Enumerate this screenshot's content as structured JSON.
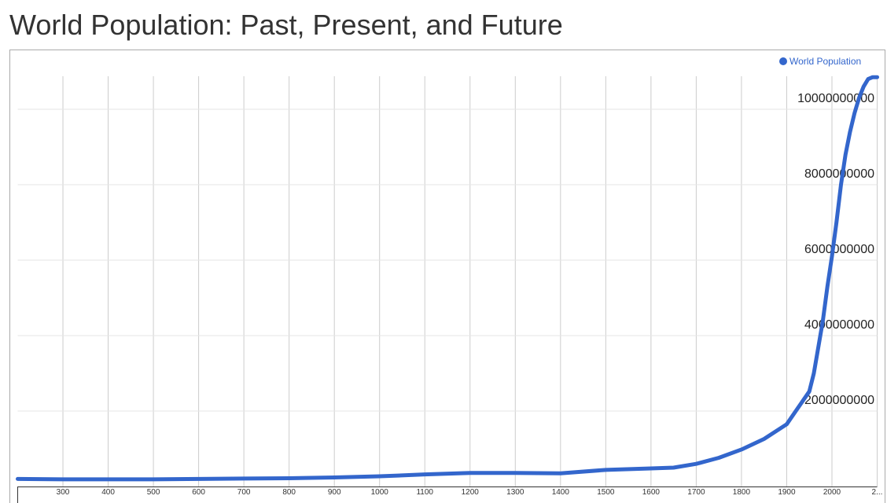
{
  "chart_data": {
    "type": "line",
    "title": "World Population: Past, Present, and Future",
    "x": [
      200,
      300,
      400,
      500,
      600,
      700,
      800,
      900,
      1000,
      1100,
      1200,
      1300,
      1400,
      1500,
      1600,
      1650,
      1700,
      1750,
      1800,
      1850,
      1900,
      1950,
      1960,
      1970,
      1980,
      1990,
      2000,
      2010,
      2020,
      2030,
      2040,
      2050,
      2060,
      2070,
      2080,
      2090,
      2100
    ],
    "series": [
      {
        "name": "World Population",
        "color": "#3366cc",
        "values": [
          200000000,
          190000000,
          190000000,
          190000000,
          200000000,
          210000000,
          220000000,
          240000000,
          270000000,
          320000000,
          360000000,
          360000000,
          350000000,
          440000000,
          480000000,
          500000000,
          600000000,
          760000000,
          980000000,
          1260000000,
          1650000000,
          2520000000,
          3000000000,
          3700000000,
          4400000000,
          5300000000,
          6100000000,
          7000000000,
          8000000000,
          8800000000,
          9400000000,
          9900000000,
          10300000000,
          10600000000,
          10800000000,
          10850000000,
          10850000000
        ]
      }
    ],
    "xlim": [
      200,
      2100
    ],
    "xticks": [
      300,
      400,
      500,
      600,
      700,
      800,
      900,
      1000,
      1100,
      1200,
      1300,
      1400,
      1500,
      1600,
      1700,
      1800,
      1900,
      2000,
      {
        "value": 2100,
        "label": "2..."
      }
    ],
    "ylim": [
      0,
      11000000000
    ],
    "yticks": [
      2000000000,
      4000000000,
      6000000000,
      8000000000,
      10000000000
    ],
    "grid": true,
    "legend": "top-right"
  }
}
